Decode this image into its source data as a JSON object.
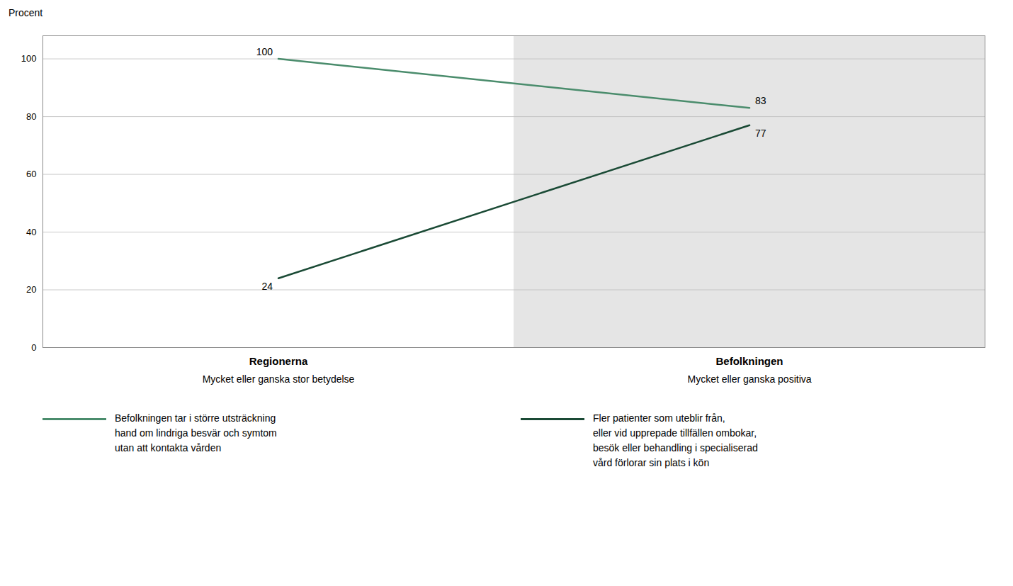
{
  "chart_data": {
    "type": "line",
    "categories": [
      "Regionerna",
      "Befolkningen"
    ],
    "category_sublabels": [
      "Mycket eller ganska stor betydelse",
      "Mycket eller ganska positiva"
    ],
    "series": [
      {
        "name": "Befolkningen tar i större utsträckning\nhand om lindriga besvär och symtom\nutan att kontakta vården",
        "color": "#4a8c6c",
        "values": [
          100,
          83
        ]
      },
      {
        "name": "Fler patienter som uteblir från,\neller vid upprepade tillfällen ombokar,\nbesök eller behandling i specialiserad\nvård förlorar sin plats i kön",
        "color": "#1a4a35",
        "values": [
          24,
          77
        ]
      }
    ],
    "ylabel": "Procent",
    "ylim": [
      0,
      108
    ],
    "yticks": [
      0,
      20,
      40,
      60,
      80,
      100
    ],
    "grid": true,
    "data_labels": true
  }
}
